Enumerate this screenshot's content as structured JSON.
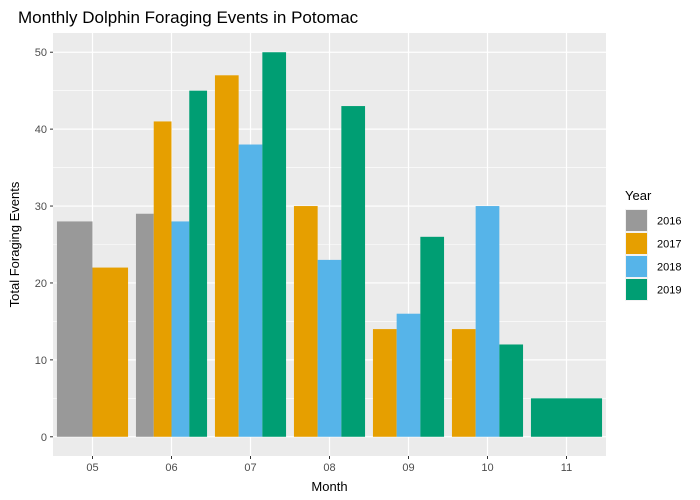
{
  "chart_data": {
    "type": "bar",
    "title": "Monthly Dolphin Foraging Events in Potomac",
    "xlabel": "Month",
    "ylabel": "Total Foraging Events",
    "categories": [
      "05",
      "06",
      "07",
      "08",
      "09",
      "10",
      "11"
    ],
    "ylim": [
      -2.5,
      52.5
    ],
    "yticks": [
      0,
      10,
      20,
      30,
      40,
      50
    ],
    "grid": true,
    "legend": {
      "title": "Year",
      "position": "right"
    },
    "bars": [
      {
        "category": "05",
        "year": "2016",
        "value": 28
      },
      {
        "category": "05",
        "year": "2017",
        "value": 22
      },
      {
        "category": "06",
        "year": "2016",
        "value": 29
      },
      {
        "category": "06",
        "year": "2017",
        "value": 41
      },
      {
        "category": "06",
        "year": "2018",
        "value": 28
      },
      {
        "category": "06",
        "year": "2019",
        "value": 45
      },
      {
        "category": "07",
        "year": "2017",
        "value": 47
      },
      {
        "category": "07",
        "year": "2018",
        "value": 38
      },
      {
        "category": "07",
        "year": "2019",
        "value": 50
      },
      {
        "category": "08",
        "year": "2017",
        "value": 30
      },
      {
        "category": "08",
        "year": "2018",
        "value": 23
      },
      {
        "category": "08",
        "year": "2019",
        "value": 43
      },
      {
        "category": "09",
        "year": "2017",
        "value": 14
      },
      {
        "category": "09",
        "year": "2018",
        "value": 16
      },
      {
        "category": "09",
        "year": "2019",
        "value": 26
      },
      {
        "category": "10",
        "year": "2017",
        "value": 14
      },
      {
        "category": "10",
        "year": "2018",
        "value": 30
      },
      {
        "category": "10",
        "year": "2019",
        "value": 12
      },
      {
        "category": "11",
        "year": "2019",
        "value": 5
      }
    ],
    "series": [
      {
        "name": "2016",
        "color": "#999999"
      },
      {
        "name": "2017",
        "color": "#E69F00"
      },
      {
        "name": "2018",
        "color": "#56B4E9"
      },
      {
        "name": "2019",
        "color": "#009E73"
      }
    ]
  },
  "colors": {
    "panel": "#EBEBEB",
    "grid": "#FFFFFF"
  }
}
